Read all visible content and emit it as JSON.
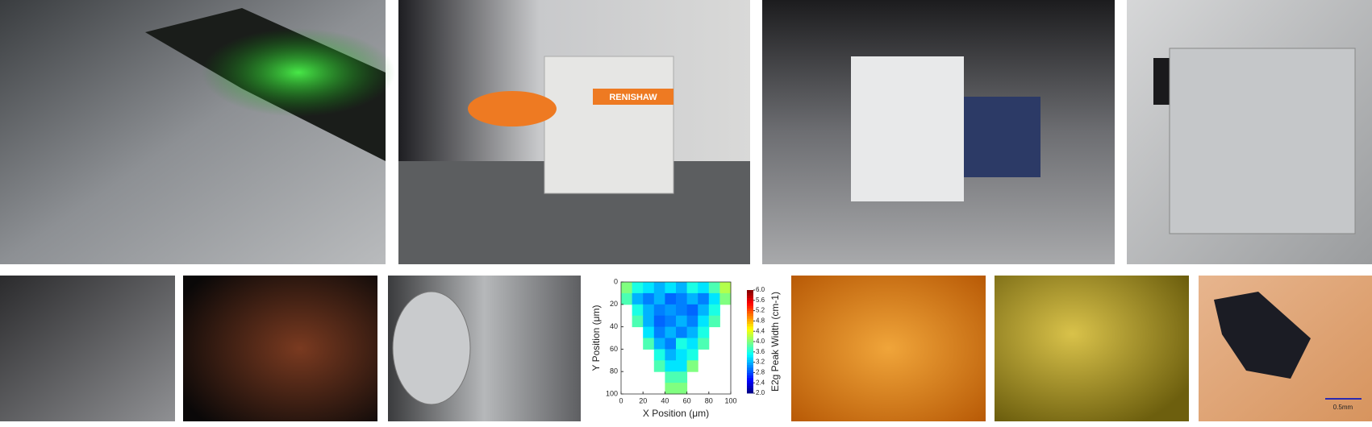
{
  "photos": {
    "brand_label": "RENISHAW",
    "scale_bar_label": "0.5mm"
  },
  "chart_data": {
    "type": "heatmap",
    "x_label": "X Position (μm)",
    "y_label": "Y Position (μm)",
    "colorbar_label": "E2g Peak Width (cm-1)",
    "x": [
      5,
      15,
      25,
      35,
      45,
      55,
      65,
      75,
      85,
      95
    ],
    "y": [
      5,
      15,
      25,
      35,
      45,
      55,
      65,
      75,
      85,
      95
    ],
    "z": [
      [
        4.0,
        3.6,
        3.4,
        3.2,
        3.4,
        3.2,
        3.6,
        3.4,
        3.8,
        4.2
      ],
      [
        3.8,
        3.2,
        3.0,
        3.2,
        2.9,
        3.0,
        3.2,
        3.0,
        3.4,
        4.0
      ],
      [
        null,
        3.6,
        3.2,
        3.0,
        3.1,
        3.0,
        2.9,
        3.2,
        3.6,
        null
      ],
      [
        null,
        3.8,
        3.2,
        2.9,
        3.0,
        3.2,
        3.0,
        3.4,
        3.8,
        null
      ],
      [
        null,
        null,
        3.4,
        3.0,
        3.2,
        3.0,
        3.2,
        3.6,
        null,
        null
      ],
      [
        null,
        null,
        3.8,
        3.2,
        3.0,
        3.6,
        3.4,
        3.8,
        null,
        null
      ],
      [
        null,
        null,
        null,
        3.6,
        3.2,
        3.4,
        3.6,
        null,
        null,
        null
      ],
      [
        null,
        null,
        null,
        3.8,
        3.4,
        3.4,
        4.0,
        null,
        null,
        null
      ],
      [
        null,
        null,
        null,
        null,
        3.8,
        3.8,
        null,
        null,
        null,
        null
      ],
      [
        null,
        null,
        null,
        null,
        4.0,
        4.0,
        null,
        null,
        null,
        null
      ]
    ],
    "xlim": [
      0,
      100
    ],
    "ylim": [
      100,
      0
    ],
    "xticks": [
      0,
      20,
      40,
      60,
      80,
      100
    ],
    "yticks": [
      0,
      20,
      40,
      60,
      80,
      100
    ],
    "colormap": "jet",
    "clim": [
      2,
      6
    ],
    "cticks": [
      {
        "value": 2,
        "label": "2.0"
      },
      2.4,
      2.8,
      3.2,
      3.6,
      {
        "value": 4,
        "label": "4.0"
      },
      4.4,
      4.8,
      5.2,
      5.6,
      {
        "value": 6,
        "label": "6.0"
      }
    ]
  }
}
